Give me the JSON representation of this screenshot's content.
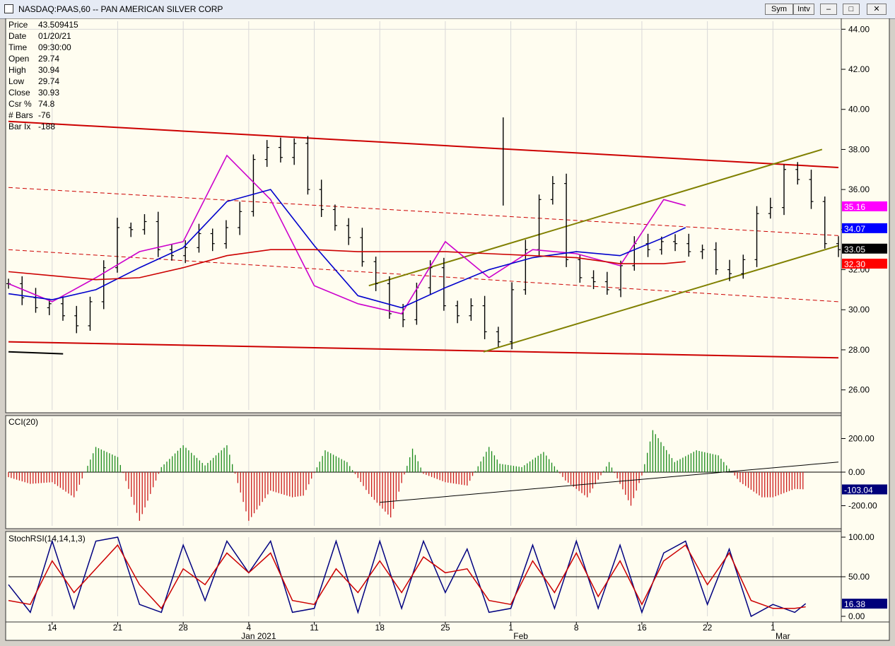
{
  "window": {
    "title": "NASDAQ:PAAS,60 -- PAN AMERICAN SILVER CORP",
    "symlink_label": "Sym",
    "intv_label": "Intv"
  },
  "info_panel": [
    {
      "label": "Price",
      "value": "43.509415"
    },
    {
      "label": "Date",
      "value": "01/20/21"
    },
    {
      "label": "Time",
      "value": "09:30:00"
    },
    {
      "label": "Open",
      "value": "29.74"
    },
    {
      "label": "High",
      "value": "30.94"
    },
    {
      "label": "Low",
      "value": "29.74"
    },
    {
      "label": "Close",
      "value": "30.93"
    },
    {
      "label": "Csr %",
      "value": "74.8"
    },
    {
      "label": "# Bars",
      "value": "-76"
    },
    {
      "label": "Bar Ix",
      "value": "-188"
    }
  ],
  "chart_data": [
    {
      "type": "line",
      "subtype": "ohlc-bars",
      "panel": "price",
      "ylim": [
        25.0,
        44.4
      ],
      "yticks": [
        26,
        28,
        30,
        32,
        34,
        36,
        38,
        40,
        42,
        44
      ],
      "ytick_labels": [
        "26.00",
        "28.00",
        "30.00",
        "32.00",
        "34.00",
        "36.00",
        "38.00",
        "40.00",
        "42.00",
        "44.00"
      ],
      "x_tick_labels": [
        "14",
        "21",
        "28",
        "4",
        "11",
        "18",
        "25",
        "1",
        "8",
        "16",
        "22",
        "1"
      ],
      "x_month_labels": [
        "Jan 2021",
        "Feb",
        "Mar"
      ],
      "x_index_range": [
        0,
        76
      ],
      "x_ticks_index": [
        4,
        10,
        16,
        22,
        28,
        34,
        40,
        46,
        52,
        58,
        64,
        70
      ],
      "close_series": [
        31.3,
        30.6,
        30.1,
        30.3,
        29.7,
        29.2,
        30.4,
        32.1,
        34.1,
        34.0,
        34.4,
        33.0,
        32.7,
        33.1,
        33.8,
        33.3,
        34.1,
        34.9,
        37.5,
        38.1,
        37.6,
        38.3,
        36.0,
        35.0,
        34.2,
        33.6,
        32.4,
        31.3,
        29.8,
        29.5,
        31.1,
        32.1,
        30.2,
        29.7,
        30.2,
        28.9,
        28.4,
        31.0,
        33.0,
        35.5,
        36.3,
        32.5,
        31.6,
        31.4,
        31.0,
        32.2,
        33.3,
        33.0,
        33.4,
        33.3,
        32.9,
        33.0,
        32.0,
        31.8,
        32.5,
        34.8,
        35.1,
        37.0,
        36.5,
        35.4,
        33.3,
        33.0
      ],
      "series": [
        {
          "name": "",
          "color": "#cc00cc",
          "x": [
            0,
            4,
            8,
            12,
            16,
            20,
            24,
            28,
            32,
            36,
            40,
            44,
            48,
            52,
            56,
            60,
            62
          ],
          "values": [
            31.3,
            30.4,
            31.6,
            32.9,
            33.4,
            37.7,
            35.5,
            31.2,
            30.3,
            29.8,
            33.4,
            31.6,
            33.0,
            32.8,
            32.2,
            35.5,
            35.2
          ]
        },
        {
          "name": "",
          "color": "#0000cc",
          "x": [
            0,
            4,
            8,
            12,
            16,
            20,
            24,
            28,
            32,
            36,
            40,
            44,
            48,
            52,
            56,
            60,
            62
          ],
          "values": [
            30.8,
            30.5,
            31.0,
            32.1,
            33.1,
            35.4,
            36.0,
            33.2,
            30.7,
            30.1,
            31.1,
            32.0,
            32.6,
            32.9,
            32.7,
            33.6,
            34.1
          ]
        },
        {
          "name": "",
          "color": "#cc0000",
          "x": [
            0,
            4,
            8,
            12,
            16,
            20,
            24,
            28,
            32,
            36,
            40,
            44,
            48,
            52,
            56,
            60,
            62
          ],
          "values": [
            31.9,
            31.7,
            31.5,
            31.6,
            32.1,
            32.7,
            33.0,
            33.0,
            32.9,
            32.9,
            32.9,
            32.8,
            32.7,
            32.6,
            32.3,
            32.3,
            32.4
          ]
        }
      ],
      "price_tags": [
        {
          "value": 35.16,
          "label": "35.16",
          "color": "#ff00ff",
          "text_color": "#ffffff"
        },
        {
          "value": 34.07,
          "label": "34.07",
          "color": "#0000ff",
          "text_color": "#ffffff"
        },
        {
          "value": 33.05,
          "label": "33.05",
          "color": "#000000",
          "text_color": "#ffffff"
        },
        {
          "value": 32.3,
          "label": "32.30",
          "color": "#ff0000",
          "text_color": "#ffffff"
        }
      ],
      "trendlines": [
        {
          "style": "solid",
          "color": "#cc0000",
          "x1": 0,
          "y1": 39.4,
          "x2": 76,
          "y2": 37.1
        },
        {
          "style": "solid",
          "color": "#cc0000",
          "x1": 0,
          "y1": 28.4,
          "x2": 76,
          "y2": 27.6
        },
        {
          "style": "dashed",
          "color": "#cc0000",
          "x1": 0,
          "y1": 36.1,
          "x2": 76,
          "y2": 33.7
        },
        {
          "style": "dashed",
          "color": "#cc0000",
          "x1": 0,
          "y1": 33.0,
          "x2": 76,
          "y2": 30.4
        },
        {
          "style": "solid",
          "color": "#808000",
          "x1": 33,
          "y1": 31.2,
          "x2": 74.5,
          "y2": 38.0
        },
        {
          "style": "solid",
          "color": "#808000",
          "x1": 43.5,
          "y1": 27.9,
          "x2": 76,
          "y2": 33.2
        },
        {
          "style": "solid",
          "color": "#000000",
          "x1": 0,
          "y1": 27.9,
          "x2": 5,
          "y2": 27.8
        }
      ]
    },
    {
      "type": "bar",
      "panel": "cci",
      "title": "CCI(20)",
      "ylim": [
        -320,
        320
      ],
      "yticks": [
        -200,
        0,
        200
      ],
      "ytick_labels": [
        "-200.00",
        "0.00",
        "200.00"
      ],
      "x": [
        0,
        2,
        4,
        6,
        8,
        10,
        12,
        14,
        16,
        18,
        20,
        22,
        24,
        26,
        27,
        29,
        31,
        33,
        35,
        37,
        38,
        40,
        42,
        44,
        45,
        47,
        49,
        51,
        53,
        55,
        57,
        58,
        59,
        61,
        63,
        65,
        67,
        69,
        70,
        72,
        73
      ],
      "values": [
        -30,
        -70,
        -60,
        -150,
        150,
        90,
        -290,
        30,
        160,
        40,
        160,
        -290,
        -110,
        -150,
        -140,
        130,
        60,
        -130,
        -270,
        140,
        -10,
        -60,
        -80,
        150,
        50,
        30,
        120,
        -50,
        -150,
        60,
        -200,
        -20,
        250,
        60,
        130,
        100,
        -60,
        -150,
        -150,
        -100,
        -103
      ],
      "last_label": "-103.04",
      "trendlines": [
        {
          "x1": 34,
          "y1": -180,
          "x2": 76,
          "y2": 60
        }
      ]
    },
    {
      "type": "line",
      "panel": "stochrsi",
      "title": "StochRSI(14,14,1,3)",
      "ylim": [
        0,
        100
      ],
      "yticks": [
        0,
        50,
        100
      ],
      "ytick_labels": [
        "0.00",
        "50.00",
        "100.00"
      ],
      "series": [
        {
          "name": "",
          "color": "#000080",
          "x": [
            0,
            2,
            4,
            6,
            8,
            10,
            12,
            14,
            16,
            18,
            20,
            22,
            24,
            26,
            28,
            30,
            32,
            34,
            36,
            38,
            40,
            42,
            44,
            46,
            48,
            50,
            52,
            54,
            56,
            58,
            60,
            62,
            64,
            66,
            68,
            70,
            72,
            73
          ],
          "values": [
            40,
            5,
            95,
            10,
            95,
            100,
            15,
            5,
            90,
            20,
            95,
            55,
            95,
            5,
            10,
            95,
            5,
            95,
            10,
            95,
            30,
            85,
            5,
            10,
            90,
            10,
            95,
            10,
            90,
            5,
            80,
            95,
            15,
            85,
            0,
            15,
            5,
            16
          ]
        },
        {
          "name": "",
          "color": "#cc0000",
          "x": [
            0,
            2,
            4,
            6,
            8,
            10,
            12,
            14,
            16,
            18,
            20,
            22,
            24,
            26,
            28,
            30,
            32,
            34,
            36,
            38,
            40,
            42,
            44,
            46,
            48,
            50,
            52,
            54,
            56,
            58,
            60,
            62,
            64,
            66,
            68,
            70,
            72,
            73
          ],
          "values": [
            20,
            15,
            70,
            30,
            60,
            90,
            40,
            10,
            60,
            40,
            80,
            55,
            80,
            20,
            15,
            60,
            30,
            70,
            30,
            75,
            55,
            60,
            20,
            15,
            70,
            30,
            80,
            25,
            70,
            15,
            70,
            90,
            40,
            80,
            20,
            10,
            10,
            12
          ]
        }
      ],
      "last_label": "16.38"
    }
  ]
}
